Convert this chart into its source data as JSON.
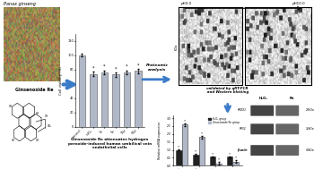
{
  "title": "Ginsenoside Re attenuates hydrogen\nperoxide-induced human umbilical vein\nendothelial cells",
  "panax_label": "Panax ginseng",
  "ginsenoside_label": "Ginsenoside Re",
  "proteomics_label": "Proteomic\nanalysis",
  "validated_label": "validated by qRT-PCR\nand Western blotting",
  "ph_label_left": "pH3.0",
  "ph_label_right": "pH10.0",
  "bar_chart1": {
    "categories": [
      "control",
      "H₂O₂",
      "1μ",
      "5μ",
      "10μ",
      "50μ"
    ],
    "values": [
      100,
      74,
      76,
      73,
      76,
      78
    ],
    "bar_color": "#b0b8c8",
    "ylabel": "Cell viability (%)",
    "error_bars": [
      2,
      3,
      3,
      3,
      3,
      3
    ]
  },
  "bar_chart2": {
    "categories": [
      "PRDX1",
      "PRDX4",
      "STK1",
      "ACYP1"
    ],
    "h2o2_values": [
      1.0,
      0.7,
      0.55,
      0.55
    ],
    "re_values": [
      2.6,
      1.8,
      0.15,
      0.25
    ],
    "h2o2_color": "#222222",
    "re_color": "#b0b8c8",
    "ylabel": "Relative mRNA expression",
    "legend": [
      "H₂O₂ group",
      "Ginsenoside Re group"
    ]
  },
  "western_labels": [
    "PRDX1",
    "PRX2",
    "β-actin"
  ],
  "western_kda": [
    "29kDa",
    "32kDa",
    "43kDa"
  ],
  "western_groups": [
    "H₂O₂",
    "Re"
  ],
  "bg_color": "#ffffff",
  "arrow_color": "#3a7bc8"
}
